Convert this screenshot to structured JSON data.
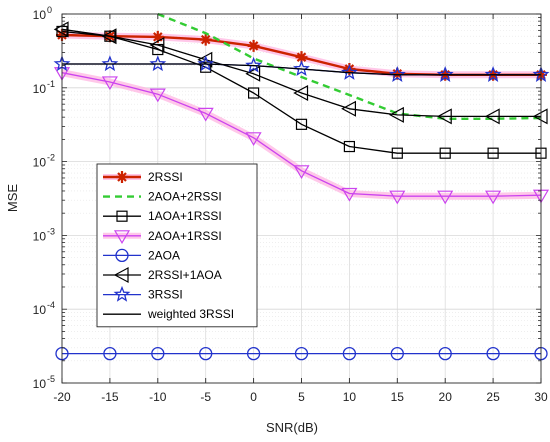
{
  "chart_data": {
    "type": "line",
    "title": "",
    "xlabel": "SNR(dB)",
    "ylabel": "MSE",
    "yscale": "log",
    "xlim": [
      -20,
      30
    ],
    "ylim": [
      1e-05,
      1
    ],
    "grid": true,
    "minor_grid": true,
    "legend_position": "lower-left",
    "x_ticks": [
      -20,
      -15,
      -10,
      -5,
      0,
      5,
      10,
      15,
      20,
      25,
      30
    ],
    "x_tick_labels": [
      "-20",
      "-15",
      "-10",
      "-5",
      "0",
      "5",
      "10",
      "15",
      "20",
      "25",
      "30"
    ],
    "y_ticks": [
      {
        "value": 1,
        "base": "10",
        "exp": "0"
      },
      {
        "value": 0.1,
        "base": "10",
        "exp": "-1"
      },
      {
        "value": 0.01,
        "base": "10",
        "exp": "-2"
      },
      {
        "value": 0.001,
        "base": "10",
        "exp": "-3"
      },
      {
        "value": 0.0001,
        "base": "10",
        "exp": "-4"
      },
      {
        "value": 1e-05,
        "base": "10",
        "exp": "-5"
      }
    ],
    "x": [
      -20,
      -15,
      -10,
      -5,
      0,
      5,
      10,
      15,
      20,
      25,
      30
    ],
    "series": [
      {
        "name": "2RSSI",
        "color": "#cc2200",
        "marker": "plus",
        "dash": "solid",
        "halo": "#ffb0e0",
        "values": [
          0.52,
          0.5,
          0.49,
          0.45,
          0.37,
          0.26,
          0.18,
          0.155,
          0.15,
          0.15,
          0.15
        ]
      },
      {
        "name": "2AOA+2RSSI",
        "color": "#33cc33",
        "marker": "none",
        "dash": "dashed",
        "halo": null,
        "values": [
          null,
          null,
          1.0,
          0.55,
          0.25,
          0.14,
          0.08,
          0.045,
          0.038,
          0.038,
          0.039
        ]
      },
      {
        "name": "1AOA+1RSSI",
        "color": "#000000",
        "marker": "square",
        "dash": "solid",
        "halo": null,
        "values": [
          0.58,
          0.5,
          0.33,
          0.19,
          0.085,
          0.032,
          0.016,
          0.013,
          0.013,
          0.013,
          0.013
        ]
      },
      {
        "name": "2AOA+1RSSI",
        "color": "#cc44ee",
        "marker": "triangle-down",
        "dash": "solid",
        "halo": "#ffb0e0",
        "values": [
          0.16,
          0.12,
          0.082,
          0.045,
          0.021,
          0.0075,
          0.0037,
          0.0034,
          0.0034,
          0.0034,
          0.0035
        ]
      },
      {
        "name": "2AOA",
        "color": "#2233cc",
        "marker": "circle",
        "dash": "solid",
        "halo": null,
        "values": [
          2.5e-05,
          2.5e-05,
          2.5e-05,
          2.5e-05,
          2.5e-05,
          2.5e-05,
          2.5e-05,
          2.5e-05,
          2.5e-05,
          2.5e-05,
          2.5e-05
        ]
      },
      {
        "name": "2RSSI+1AOA",
        "color": "#000000",
        "marker": "triangle-left",
        "dash": "solid",
        "halo": null,
        "values": [
          0.62,
          0.5,
          0.38,
          0.24,
          0.155,
          0.085,
          0.052,
          0.043,
          0.041,
          0.041,
          0.041
        ]
      },
      {
        "name": "3RSSI",
        "color": "#2233cc",
        "marker": "star",
        "dash": "solid",
        "halo": null,
        "values": [
          0.21,
          0.21,
          0.21,
          0.21,
          0.2,
          0.18,
          0.16,
          0.15,
          0.15,
          0.15,
          0.15
        ]
      },
      {
        "name": "weighted 3RSSI",
        "color": "#000000",
        "marker": "none",
        "dash": "solid",
        "halo": null,
        "values": [
          0.21,
          0.21,
          0.21,
          0.21,
          0.2,
          0.18,
          0.16,
          0.15,
          0.15,
          0.15,
          0.15
        ]
      }
    ]
  }
}
